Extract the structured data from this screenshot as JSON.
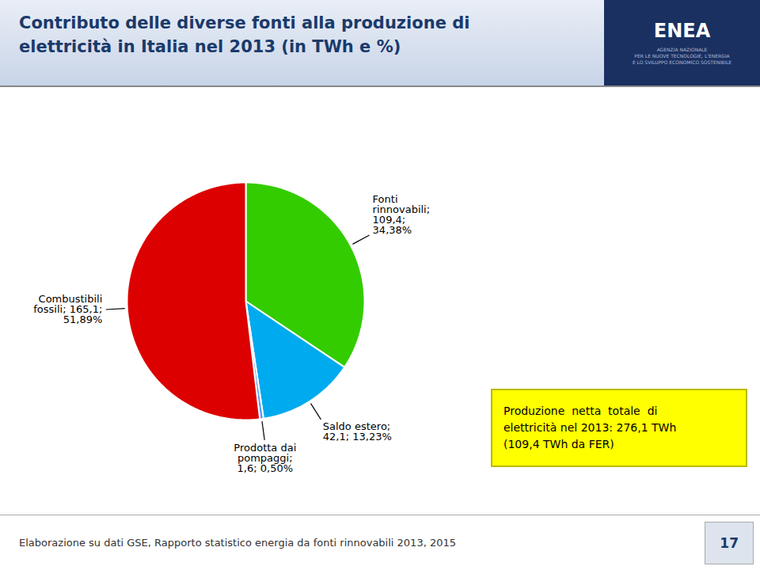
{
  "chart_data": {
    "type": "pie",
    "title": "Contributo delle diverse fonti alla produzione di\nelettricità in Italia nel 2013 (in TWh e %)",
    "categories": [
      "Fonti\nrinnovabili;\n109,4;\n34,38%",
      "Saldo estero;\n42,1; 13,23%",
      "Prodotta dai\npompaggi;\n1,6; 0,50%",
      "Combustibili\nfossili; 165,1;\n51,89%"
    ],
    "values": [
      109.4,
      42.1,
      1.6,
      165.1
    ],
    "colors": [
      "#33cc00",
      "#00aaee",
      "#5599ff",
      "#dd0000"
    ],
    "annotation": "Produzione  netta  totale  di\nelettricità nel 2013: 276,1 TWh\n(109,4 TWh da FER)",
    "source": "Elaborazione su dati GSE, Rapporto statistico energia da fonti rinnovabili 2013, 2015",
    "logo": [
      "ENEA",
      "AGENZIA NAZIONALE\nPER LE NUOVE TECNOLOGIE, L'ENERGIA\nE LO SVILUPPO ECONOMICO SOSTENIBILE"
    ],
    "page_number": "17"
  }
}
